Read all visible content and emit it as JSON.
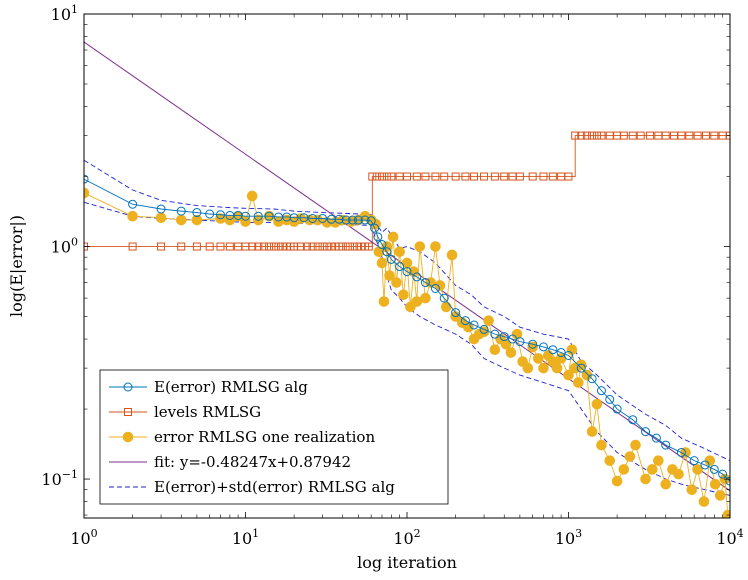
{
  "chart_data": {
    "type": "scatter",
    "xscale": "log",
    "yscale": "log",
    "xlim": [
      1,
      10000
    ],
    "ylim": [
      0.068,
      10
    ],
    "xlabel": "log iteration",
    "ylabel": "log(E|error|)",
    "grid": false,
    "legend_placement": "bottom-left",
    "x_ticks": [
      {
        "value": 1,
        "base": "10",
        "exp": "0"
      },
      {
        "value": 10,
        "base": "10",
        "exp": "1"
      },
      {
        "value": 100,
        "base": "10",
        "exp": "2"
      },
      {
        "value": 1000,
        "base": "10",
        "exp": "3"
      },
      {
        "value": 10000,
        "base": "10",
        "exp": "4"
      }
    ],
    "y_ticks": [
      {
        "value": 0.1,
        "base": "10",
        "exp": "−1"
      },
      {
        "value": 1,
        "base": "10",
        "exp": "0"
      },
      {
        "value": 10,
        "base": "10",
        "exp": "1"
      }
    ],
    "series": [
      {
        "name": "E(error) RMLSG alg",
        "marker": "circle-open",
        "line": "solid",
        "color": "#0072bd",
        "x": [
          1,
          2,
          3,
          4,
          5,
          6,
          7,
          8,
          9,
          10,
          12,
          14,
          16,
          18,
          20,
          23,
          26,
          30,
          34,
          38,
          42,
          46,
          50,
          55,
          60,
          63,
          66,
          70,
          75,
          80,
          90,
          100,
          115,
          130,
          150,
          170,
          200,
          230,
          260,
          300,
          350,
          400,
          450,
          500,
          600,
          700,
          800,
          900,
          1000,
          1200,
          1400,
          1600,
          1800,
          2000,
          2500,
          3000,
          3500,
          4000,
          5000,
          6000,
          7000,
          8000,
          9000,
          10000
        ],
        "y": [
          1.95,
          1.52,
          1.45,
          1.42,
          1.4,
          1.38,
          1.37,
          1.36,
          1.36,
          1.35,
          1.35,
          1.35,
          1.34,
          1.34,
          1.33,
          1.33,
          1.32,
          1.32,
          1.31,
          1.31,
          1.3,
          1.3,
          1.3,
          1.3,
          1.29,
          1.2,
          1.1,
          1.02,
          0.95,
          0.88,
          0.82,
          0.78,
          0.74,
          0.7,
          0.66,
          0.6,
          0.52,
          0.48,
          0.46,
          0.44,
          0.42,
          0.41,
          0.4,
          0.39,
          0.38,
          0.37,
          0.36,
          0.35,
          0.34,
          0.3,
          0.27,
          0.24,
          0.22,
          0.2,
          0.18,
          0.16,
          0.15,
          0.14,
          0.13,
          0.12,
          0.115,
          0.11,
          0.105,
          0.098
        ]
      },
      {
        "name": "levels RMLSG",
        "marker": "square-open",
        "line": "solid",
        "color": "#d95319",
        "x": [
          1,
          2,
          3,
          4,
          5,
          6,
          7,
          8,
          9,
          10,
          11,
          12,
          13,
          14,
          15,
          16,
          17,
          18,
          19,
          20,
          22,
          24,
          26,
          28,
          30,
          32,
          34,
          36,
          38,
          40,
          43,
          46,
          49,
          52,
          55,
          58,
          61,
          65,
          70,
          75,
          80,
          90,
          100,
          115,
          130,
          150,
          170,
          200,
          230,
          260,
          300,
          350,
          400,
          450,
          500,
          600,
          700,
          800,
          900,
          1000,
          1100,
          1200,
          1300,
          1400,
          1500,
          1600,
          1800,
          2000,
          2200,
          2500,
          2800,
          3200,
          3600,
          4000,
          4500,
          5000,
          5600,
          6300,
          7100,
          8000,
          9000,
          10000
        ],
        "y": [
          1,
          1,
          1,
          1,
          1,
          1,
          1,
          1,
          1,
          1,
          1,
          1,
          1,
          1,
          1,
          1,
          1,
          1,
          1,
          1,
          1,
          1,
          1,
          1,
          1,
          1,
          1,
          1,
          1,
          1,
          1,
          1,
          1,
          1,
          1,
          1,
          2,
          2,
          2,
          2,
          2,
          2,
          2,
          2,
          2,
          2,
          2,
          2,
          2,
          2,
          2,
          2,
          2,
          2,
          2,
          2,
          2,
          2,
          2,
          2,
          3,
          3,
          3,
          3,
          3,
          3,
          3,
          3,
          3,
          3,
          3,
          3,
          3,
          3,
          3,
          3,
          3,
          3,
          3,
          3,
          3,
          3
        ]
      },
      {
        "name": "error RMLSG one realization",
        "marker": "circle-filled",
        "line": "solid",
        "color": "#edb120",
        "x": [
          1,
          2,
          3,
          4,
          5,
          7,
          8,
          9,
          10,
          11,
          12,
          14,
          16,
          18,
          20,
          22,
          25,
          28,
          32,
          36,
          40,
          45,
          50,
          55,
          60,
          64,
          67,
          70,
          72,
          75,
          78,
          82,
          86,
          90,
          95,
          100,
          105,
          110,
          115,
          120,
          130,
          140,
          150,
          160,
          175,
          190,
          200,
          220,
          240,
          260,
          280,
          300,
          320,
          350,
          380,
          410,
          440,
          480,
          520,
          560,
          600,
          650,
          700,
          750,
          800,
          850,
          900,
          1000,
          1050,
          1100,
          1150,
          1200,
          1300,
          1400,
          1500,
          1600,
          1800,
          2000,
          2200,
          2400,
          2600,
          3000,
          3300,
          3600,
          4000,
          4400,
          4800,
          5300,
          5800,
          6300,
          6900,
          7500,
          8100,
          8700,
          9300,
          9700
        ],
        "y": [
          1.7,
          1.35,
          1.33,
          1.3,
          1.3,
          1.32,
          1.3,
          1.35,
          1.28,
          1.65,
          1.3,
          1.35,
          1.28,
          1.3,
          1.28,
          1.32,
          1.3,
          1.3,
          1.27,
          1.27,
          1.3,
          1.28,
          1.3,
          1.35,
          1.3,
          1.25,
          0.95,
          0.85,
          0.58,
          1.0,
          0.75,
          1.1,
          0.7,
          0.95,
          0.62,
          0.85,
          0.55,
          0.78,
          0.58,
          1.0,
          0.6,
          0.7,
          1.0,
          0.68,
          0.55,
          0.92,
          0.5,
          0.47,
          0.45,
          0.4,
          0.42,
          0.43,
          0.48,
          0.36,
          0.4,
          0.38,
          0.35,
          0.42,
          0.32,
          0.3,
          0.37,
          0.33,
          0.3,
          0.34,
          0.32,
          0.3,
          0.33,
          0.28,
          0.36,
          0.3,
          0.26,
          0.31,
          0.28,
          0.16,
          0.21,
          0.14,
          0.12,
          0.098,
          0.11,
          0.125,
          0.14,
          0.1,
          0.11,
          0.12,
          0.095,
          0.11,
          0.105,
          0.13,
          0.09,
          0.11,
          0.08,
          0.12,
          0.095,
          0.085,
          0.1,
          0.07
        ]
      },
      {
        "name": "fit: y=-0.48247x+0.87942",
        "marker": "none",
        "line": "solid",
        "color": "#7e2f8e",
        "slope": -0.48247,
        "intercept": 0.87942
      },
      {
        "name": "E(error)+std(error) RMLSG alg",
        "marker": "none",
        "line": "dashed",
        "color": "#1f1fd6",
        "bands": [
          {
            "x": [
              1,
              2,
              3,
              5,
              8,
              10,
              15,
              20,
              30,
              40,
              50,
              60,
              65,
              70,
              75,
              80,
              90,
              100,
              120,
              150,
              200,
              250,
              300,
              400,
              500,
              700,
              1000,
              1200,
              1500,
              2000,
              3000,
              4000,
              5000,
              7000,
              10000
            ],
            "y": [
              2.35,
              1.75,
              1.58,
              1.5,
              1.47,
              1.46,
              1.45,
              1.42,
              1.4,
              1.39,
              1.38,
              1.37,
              1.25,
              1.15,
              1.2,
              1.12,
              0.98,
              1.0,
              0.95,
              0.85,
              0.68,
              0.62,
              0.55,
              0.5,
              0.45,
              0.42,
              0.4,
              0.32,
              0.28,
              0.23,
              0.19,
              0.17,
              0.15,
              0.135,
              0.12
            ]
          },
          {
            "x": [
              1,
              2,
              3,
              5,
              8,
              10,
              15,
              20,
              30,
              40,
              50,
              60,
              65,
              70,
              75,
              80,
              90,
              100,
              120,
              150,
              200,
              250,
              300,
              400,
              500,
              700,
              1000,
              1200,
              1500,
              2000,
              3000,
              4000,
              5000,
              7000,
              10000
            ],
            "y": [
              1.55,
              1.35,
              1.32,
              1.3,
              1.28,
              1.27,
              1.27,
              1.26,
              1.25,
              1.24,
              1.24,
              1.23,
              1.05,
              0.9,
              0.75,
              0.65,
              0.6,
              0.55,
              0.5,
              0.46,
              0.42,
              0.38,
              0.33,
              0.3,
              0.28,
              0.26,
              0.24,
              0.2,
              0.16,
              0.13,
              0.11,
              0.1,
              0.095,
              0.09,
              0.085
            ]
          }
        ]
      }
    ]
  }
}
